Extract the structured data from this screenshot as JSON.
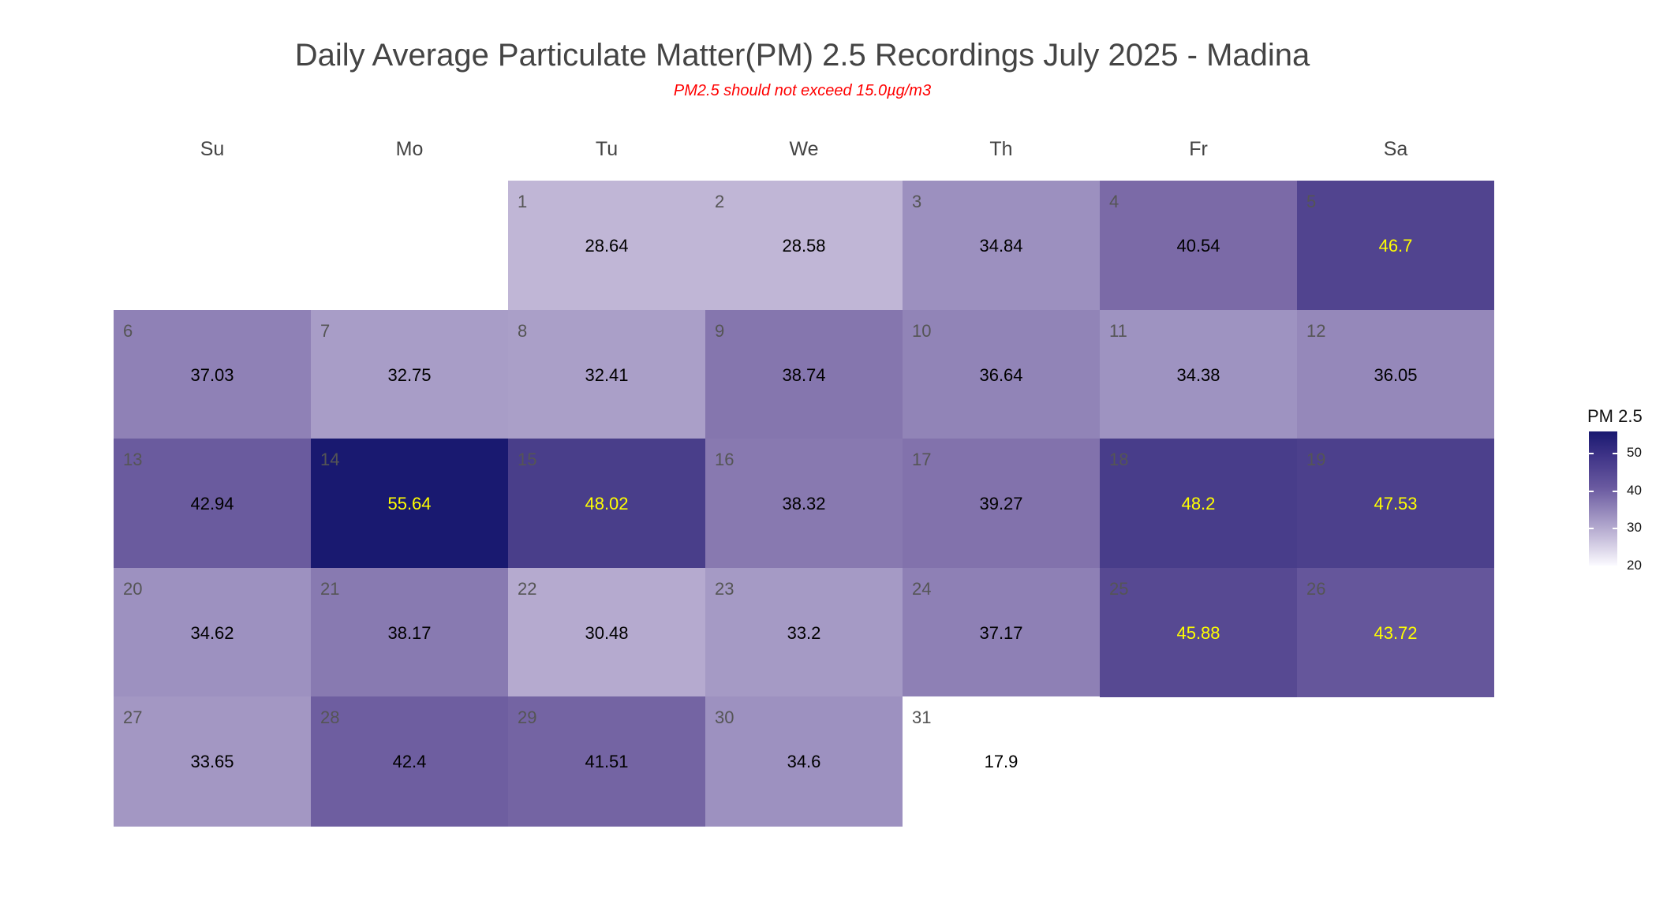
{
  "chart_data": {
    "type": "heatmap",
    "title": "Daily Average Particulate Matter(PM) 2.5 Recordings July 2025 -  Madina",
    "subtitle": "PM2.5 should not exceed 15.0µg/m3",
    "weekdays": [
      "Su",
      "Mo",
      "Tu",
      "We",
      "Th",
      "Fr",
      "Sa"
    ],
    "first_weekday_index": 2,
    "days": [
      1,
      2,
      3,
      4,
      5,
      6,
      7,
      8,
      9,
      10,
      11,
      12,
      13,
      14,
      15,
      16,
      17,
      18,
      19,
      20,
      21,
      22,
      23,
      24,
      25,
      26,
      27,
      28,
      29,
      30,
      31
    ],
    "values": [
      "28.64",
      "28.58",
      "34.84",
      "40.54",
      "46.7",
      "37.03",
      "32.75",
      "32.41",
      "38.74",
      "36.64",
      "34.38",
      "36.05",
      "42.94",
      "55.64",
      "48.02",
      "38.32",
      "39.27",
      "48.2",
      "47.53",
      "34.62",
      "38.17",
      "30.48",
      "33.2",
      "37.17",
      "45.88",
      "43.72",
      "33.65",
      "42.4",
      "41.51",
      "34.6",
      "17.9"
    ],
    "legend": {
      "title": "PM 2.5",
      "ticks": [
        "50",
        "40",
        "30",
        "20"
      ],
      "range": [
        20,
        55.64
      ],
      "position": "right"
    },
    "colors": {
      "low": "#ffffff",
      "high": "#191970",
      "label_dark": "#000000",
      "label_light": "#ffff00"
    }
  }
}
